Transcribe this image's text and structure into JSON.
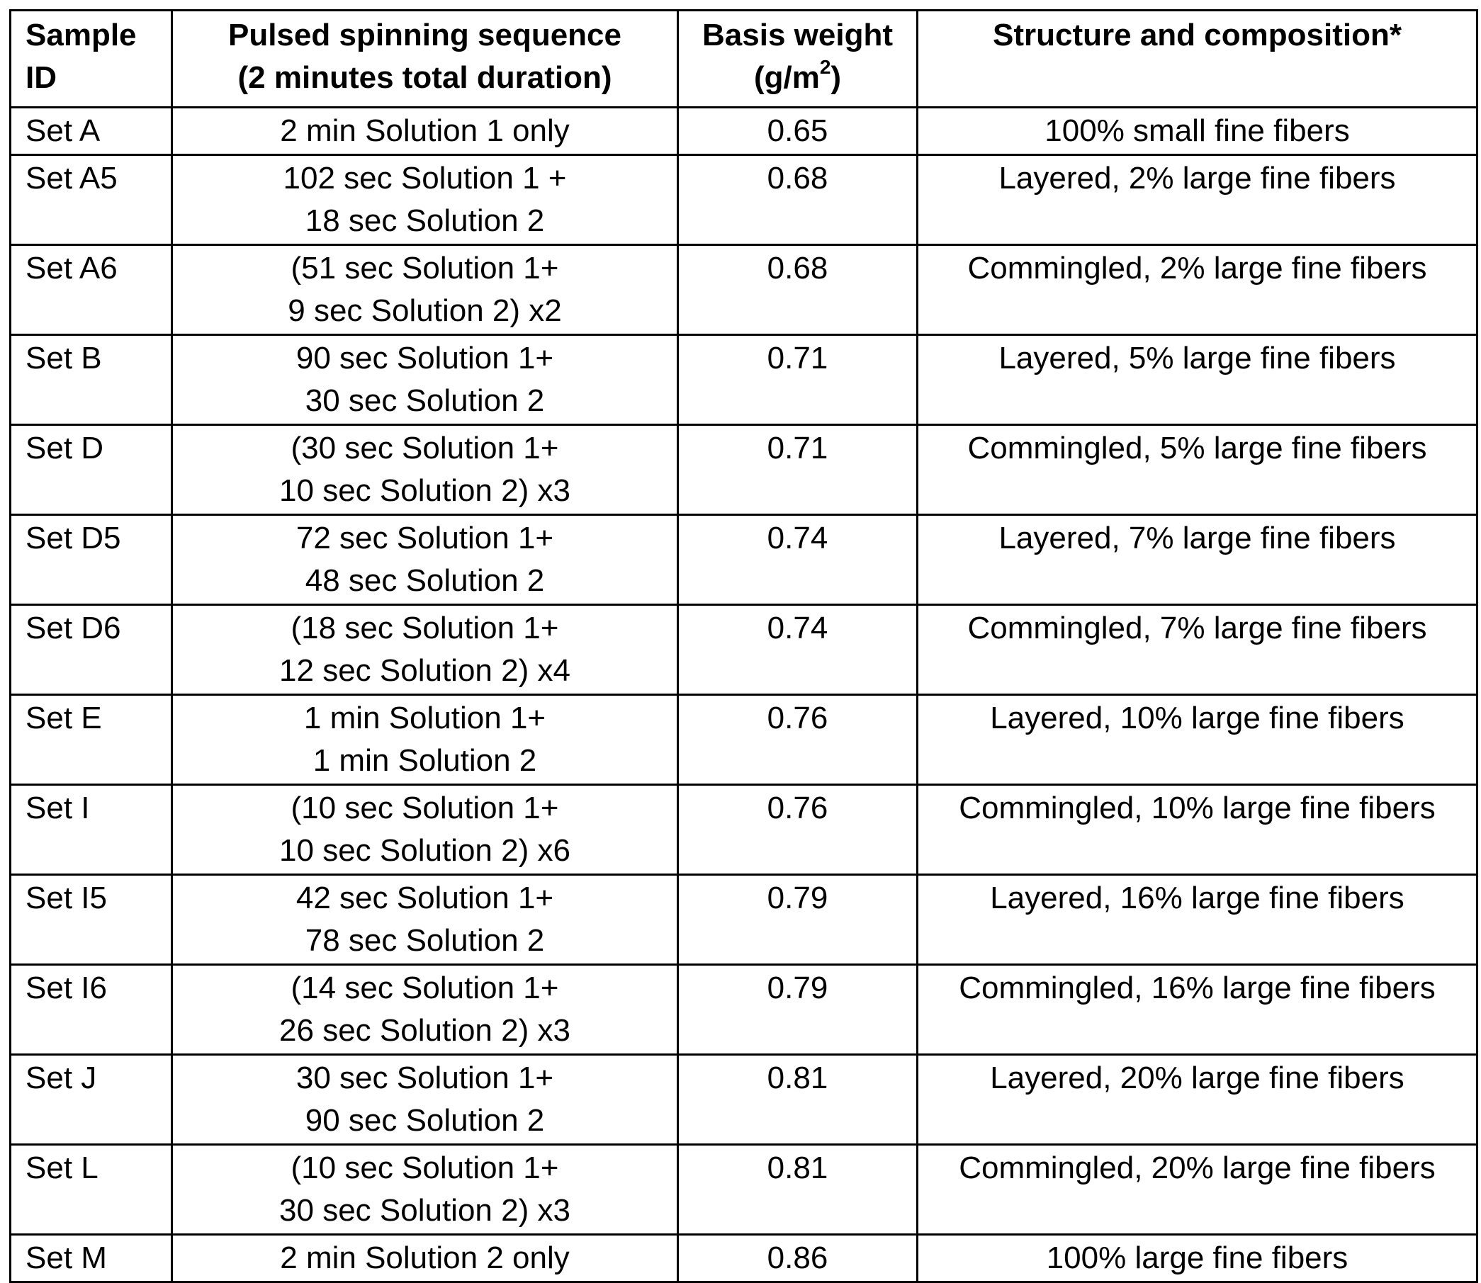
{
  "table": {
    "headers": {
      "sample_id": [
        "Sample",
        "ID"
      ],
      "sequence": [
        "Pulsed spinning sequence",
        "(2 minutes total duration)"
      ],
      "basis_weight": [
        "Basis weight",
        "(g/m",
        "2",
        ")"
      ],
      "structure": [
        "Structure and composition*"
      ]
    },
    "rows": [
      {
        "id": "Set A",
        "seq": [
          "2 min Solution 1 only"
        ],
        "bw": "0.65",
        "struct": "100% small fine fibers"
      },
      {
        "id": "Set A5",
        "seq": [
          "102 sec Solution 1 +",
          "18 sec Solution 2"
        ],
        "bw": "0.68",
        "struct": "Layered, 2% large fine fibers"
      },
      {
        "id": "Set A6",
        "seq": [
          "(51 sec Solution 1+",
          "9 sec Solution 2) x2"
        ],
        "bw": "0.68",
        "struct": "Commingled, 2% large fine fibers"
      },
      {
        "id": "Set B",
        "seq": [
          "90 sec Solution 1+",
          "30 sec Solution 2"
        ],
        "bw": "0.71",
        "struct": "Layered, 5% large fine fibers"
      },
      {
        "id": "Set D",
        "seq": [
          "(30 sec Solution 1+",
          "10 sec Solution 2) x3"
        ],
        "bw": "0.71",
        "struct": "Commingled, 5% large fine fibers"
      },
      {
        "id": "Set D5",
        "seq": [
          "72 sec Solution 1+",
          "48 sec Solution 2"
        ],
        "bw": "0.74",
        "struct": "Layered, 7% large fine fibers"
      },
      {
        "id": "Set D6",
        "seq": [
          "(18 sec Solution 1+",
          "12 sec Solution 2) x4"
        ],
        "bw": "0.74",
        "struct": "Commingled, 7% large fine fibers"
      },
      {
        "id": "Set E",
        "seq": [
          "1 min Solution 1+",
          "1 min Solution 2"
        ],
        "bw": "0.76",
        "struct": "Layered, 10% large fine fibers"
      },
      {
        "id": "Set I",
        "seq": [
          "(10 sec Solution 1+",
          "10 sec Solution 2) x6"
        ],
        "bw": "0.76",
        "struct": "Commingled, 10% large fine fibers"
      },
      {
        "id": "Set I5",
        "seq": [
          "42 sec Solution 1+",
          "78 sec Solution 2"
        ],
        "bw": "0.79",
        "struct": "Layered, 16% large fine fibers"
      },
      {
        "id": "Set I6",
        "seq": [
          "(14 sec Solution 1+",
          "26 sec Solution 2) x3"
        ],
        "bw": "0.79",
        "struct": "Commingled, 16% large fine fibers"
      },
      {
        "id": "Set J",
        "seq": [
          "30 sec Solution 1+",
          "90 sec Solution 2"
        ],
        "bw": "0.81",
        "struct": "Layered, 20% large fine fibers"
      },
      {
        "id": "Set L",
        "seq": [
          "(10 sec Solution 1+",
          "30 sec Solution 2) x3"
        ],
        "bw": "0.81",
        "struct": "Commingled, 20% large fine fibers"
      },
      {
        "id": "Set M",
        "seq": [
          "2 min Solution 2 only"
        ],
        "bw": "0.86",
        "struct": "100% large fine fibers"
      }
    ]
  }
}
